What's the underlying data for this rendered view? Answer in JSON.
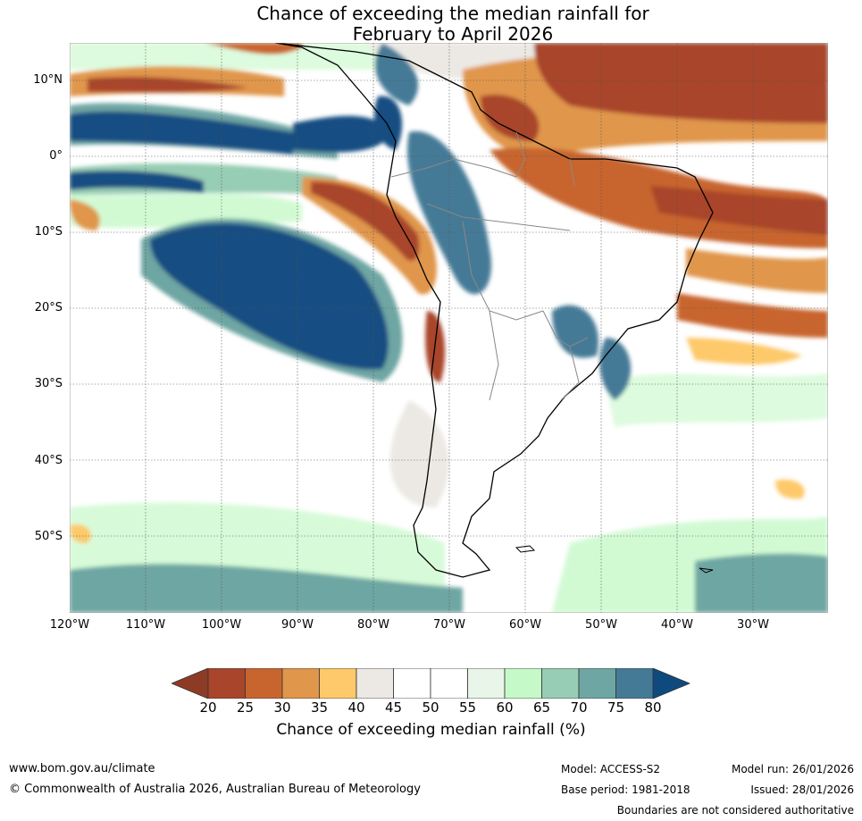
{
  "title": {
    "line1": "Chance of exceeding the median rainfall for",
    "line2": "February to April 2026"
  },
  "map": {
    "lat_labels": [
      "10°N",
      "0°",
      "10°S",
      "20°S",
      "30°S",
      "40°S",
      "50°S"
    ],
    "lon_labels": [
      "120°W",
      "110°W",
      "100°W",
      "90°W",
      "80°W",
      "70°W",
      "60°W",
      "50°W",
      "40°W",
      "30°W"
    ]
  },
  "colorbar": {
    "ticks": [
      "20",
      "25",
      "30",
      "35",
      "40",
      "45",
      "50",
      "55",
      "60",
      "65",
      "70",
      "75",
      "80"
    ],
    "colors": [
      "#a8452b",
      "#c8652f",
      "#e0964b",
      "#fdc96b",
      "#ece9e4",
      "#ffffff",
      "#ffffff",
      "#e9f5e9",
      "#c6f9c8",
      "#97cdb4",
      "#6ea6a3",
      "#457a97",
      "#124d82"
    ],
    "under_color": "#8e3b26",
    "over_color": "#0f4a7f",
    "label": "Chance of exceeding median rainfall (%)"
  },
  "footer": {
    "website": "www.bom.gov.au/climate",
    "copyright": "© Commonwealth of Australia 2026, Australian Bureau of Meteorology",
    "model": "Model: ACCESS-S2",
    "base_period": "Base period: 1981-2018",
    "model_run": "Model run: 26/01/2026",
    "issued": "Issued: 28/01/2026",
    "disclaimer": "Boundaries are not considered authoritative"
  }
}
